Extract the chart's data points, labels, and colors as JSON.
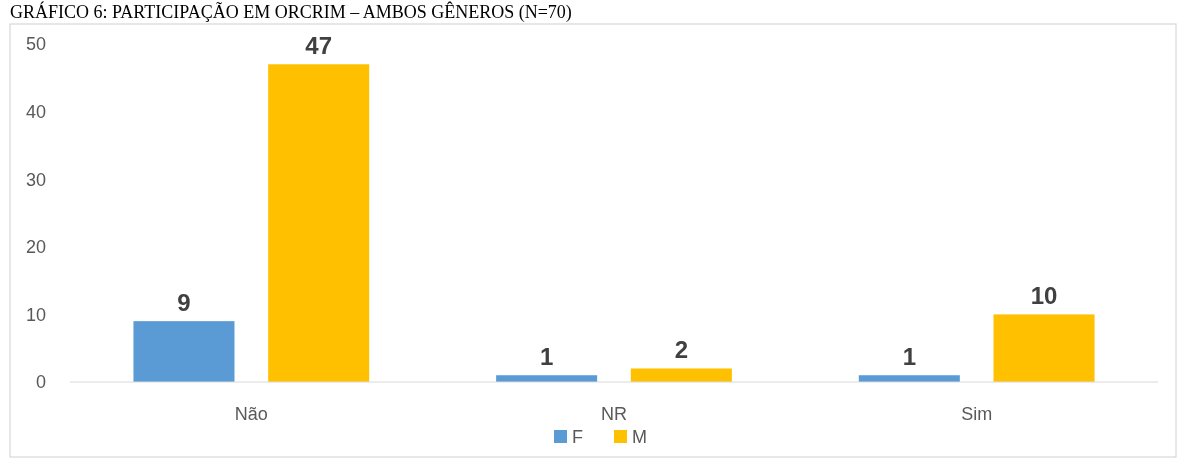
{
  "chart_data": {
    "type": "bar",
    "title": "GRÁFICO 6: PARTICIPAÇÃO EM ORCRIM – AMBOS GÊNEROS (N=70)",
    "categories": [
      "Não",
      "NR",
      "Sim"
    ],
    "series": [
      {
        "name": "F",
        "color": "#5b9bd5",
        "values": [
          9,
          1,
          1
        ]
      },
      {
        "name": "M",
        "color": "#ffc000",
        "values": [
          47,
          2,
          10
        ]
      }
    ],
    "ylim": [
      0,
      50
    ],
    "yticks": [
      0,
      10,
      20,
      30,
      40,
      50
    ],
    "grid": false,
    "legend": "bottom",
    "data_labels": true
  }
}
